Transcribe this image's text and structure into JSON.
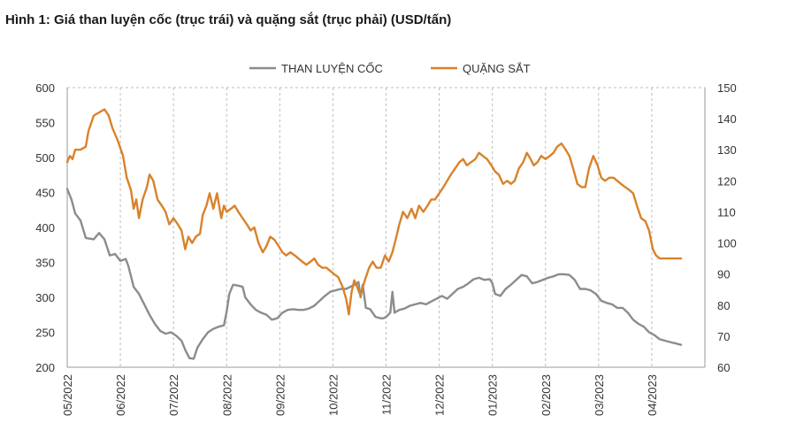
{
  "page": {
    "title": "Hình 1: Giá than luyện cốc (trục trái) và quặng sắt (trục phải) (USD/tấn)"
  },
  "colors": {
    "coal": "#8c8c8c",
    "ore": "#d9822b",
    "grid": "#bdbdbd",
    "axis": "#999999"
  },
  "chart_data": {
    "type": "line",
    "title": "Hình 1: Giá than luyện cốc (trục trái) và quặng sắt (trục phải) (USD/tấn)",
    "legend_position": "top-center",
    "grid": "vertical-dashed",
    "x_ticks": [
      "05/2022",
      "06/2022",
      "07/2022",
      "08/2022",
      "09/2022",
      "10/2022",
      "11/2022",
      "12/2022",
      "01/2023",
      "02/2023",
      "03/2023",
      "04/2023"
    ],
    "y_left": {
      "min": 200,
      "max": 600,
      "ticks": [
        200,
        250,
        300,
        350,
        400,
        450,
        500,
        550,
        600
      ]
    },
    "y_right": {
      "min": 60,
      "max": 150,
      "ticks": [
        60,
        70,
        80,
        90,
        100,
        110,
        120,
        130,
        140,
        150
      ]
    },
    "series": [
      {
        "name": "THAN LUYỆN CỐC",
        "axis": "left",
        "points": [
          [
            0,
            455
          ],
          [
            0.08,
            440
          ],
          [
            0.15,
            420
          ],
          [
            0.25,
            410
          ],
          [
            0.35,
            385
          ],
          [
            0.5,
            383
          ],
          [
            0.6,
            392
          ],
          [
            0.7,
            383
          ],
          [
            0.8,
            360
          ],
          [
            0.9,
            362
          ],
          [
            1.0,
            352
          ],
          [
            1.1,
            355
          ],
          [
            1.15,
            345
          ],
          [
            1.25,
            315
          ],
          [
            1.35,
            305
          ],
          [
            1.45,
            290
          ],
          [
            1.55,
            275
          ],
          [
            1.65,
            262
          ],
          [
            1.75,
            252
          ],
          [
            1.85,
            248
          ],
          [
            1.95,
            250
          ],
          [
            2.05,
            245
          ],
          [
            2.15,
            238
          ],
          [
            2.22,
            225
          ],
          [
            2.3,
            213
          ],
          [
            2.38,
            212
          ],
          [
            2.45,
            228
          ],
          [
            2.55,
            240
          ],
          [
            2.65,
            250
          ],
          [
            2.75,
            255
          ],
          [
            2.85,
            258
          ],
          [
            2.95,
            260
          ],
          [
            3.0,
            280
          ],
          [
            3.05,
            305
          ],
          [
            3.12,
            318
          ],
          [
            3.2,
            317
          ],
          [
            3.3,
            315
          ],
          [
            3.35,
            300
          ],
          [
            3.45,
            290
          ],
          [
            3.55,
            282
          ],
          [
            3.65,
            278
          ],
          [
            3.75,
            275
          ],
          [
            3.85,
            268
          ],
          [
            3.95,
            270
          ],
          [
            4.05,
            278
          ],
          [
            4.15,
            282
          ],
          [
            4.25,
            283
          ],
          [
            4.35,
            282
          ],
          [
            4.45,
            282
          ],
          [
            4.55,
            284
          ],
          [
            4.65,
            288
          ],
          [
            4.75,
            295
          ],
          [
            4.85,
            302
          ],
          [
            4.95,
            308
          ],
          [
            5.05,
            310
          ],
          [
            5.15,
            312
          ],
          [
            5.25,
            312
          ],
          [
            5.35,
            316
          ],
          [
            5.42,
            318
          ],
          [
            5.48,
            322
          ],
          [
            5.52,
            300
          ],
          [
            5.56,
            318
          ],
          [
            5.62,
            285
          ],
          [
            5.7,
            283
          ],
          [
            5.8,
            272
          ],
          [
            5.9,
            270
          ],
          [
            5.95,
            270
          ],
          [
            6.0,
            272
          ],
          [
            6.08,
            278
          ],
          [
            6.12,
            308
          ],
          [
            6.16,
            278
          ],
          [
            6.25,
            282
          ],
          [
            6.35,
            284
          ],
          [
            6.45,
            288
          ],
          [
            6.55,
            290
          ],
          [
            6.65,
            292
          ],
          [
            6.75,
            290
          ],
          [
            6.85,
            294
          ],
          [
            6.95,
            298
          ],
          [
            7.05,
            302
          ],
          [
            7.15,
            298
          ],
          [
            7.25,
            305
          ],
          [
            7.35,
            312
          ],
          [
            7.45,
            315
          ],
          [
            7.55,
            320
          ],
          [
            7.65,
            326
          ],
          [
            7.75,
            328
          ],
          [
            7.85,
            325
          ],
          [
            7.95,
            326
          ],
          [
            8.0,
            320
          ],
          [
            8.05,
            305
          ],
          [
            8.15,
            302
          ],
          [
            8.25,
            312
          ],
          [
            8.35,
            318
          ],
          [
            8.45,
            325
          ],
          [
            8.55,
            332
          ],
          [
            8.65,
            330
          ],
          [
            8.75,
            320
          ],
          [
            8.85,
            322
          ],
          [
            8.95,
            325
          ],
          [
            9.05,
            328
          ],
          [
            9.15,
            330
          ],
          [
            9.25,
            333
          ],
          [
            9.35,
            333
          ],
          [
            9.45,
            332
          ],
          [
            9.55,
            325
          ],
          [
            9.65,
            312
          ],
          [
            9.75,
            312
          ],
          [
            9.85,
            310
          ],
          [
            9.95,
            305
          ],
          [
            10.05,
            295
          ],
          [
            10.15,
            292
          ],
          [
            10.25,
            290
          ],
          [
            10.35,
            285
          ],
          [
            10.45,
            285
          ],
          [
            10.55,
            278
          ],
          [
            10.65,
            268
          ],
          [
            10.75,
            262
          ],
          [
            10.85,
            258
          ],
          [
            10.95,
            250
          ],
          [
            11.05,
            246
          ],
          [
            11.15,
            240
          ],
          [
            11.25,
            238
          ],
          [
            11.35,
            236
          ],
          [
            11.45,
            234
          ],
          [
            11.55,
            232
          ]
        ]
      },
      {
        "name": "QUẶNG SẮT",
        "axis": "right",
        "points": [
          [
            0,
            126
          ],
          [
            0.05,
            128
          ],
          [
            0.1,
            127
          ],
          [
            0.15,
            130
          ],
          [
            0.25,
            130
          ],
          [
            0.35,
            131
          ],
          [
            0.4,
            136
          ],
          [
            0.5,
            141
          ],
          [
            0.6,
            142
          ],
          [
            0.7,
            143
          ],
          [
            0.78,
            141
          ],
          [
            0.85,
            137
          ],
          [
            0.95,
            133
          ],
          [
            1.05,
            128
          ],
          [
            1.12,
            121
          ],
          [
            1.2,
            117
          ],
          [
            1.25,
            111
          ],
          [
            1.3,
            114
          ],
          [
            1.35,
            108
          ],
          [
            1.42,
            114
          ],
          [
            1.5,
            118
          ],
          [
            1.55,
            122
          ],
          [
            1.62,
            120
          ],
          [
            1.7,
            114
          ],
          [
            1.78,
            112
          ],
          [
            1.85,
            110
          ],
          [
            1.92,
            106
          ],
          [
            2.0,
            108
          ],
          [
            2.08,
            106
          ],
          [
            2.15,
            104
          ],
          [
            2.22,
            98
          ],
          [
            2.28,
            102
          ],
          [
            2.35,
            100
          ],
          [
            2.42,
            102
          ],
          [
            2.5,
            103
          ],
          [
            2.55,
            109
          ],
          [
            2.62,
            112
          ],
          [
            2.68,
            116
          ],
          [
            2.75,
            111
          ],
          [
            2.82,
            116
          ],
          [
            2.9,
            108
          ],
          [
            2.95,
            112
          ],
          [
            3.0,
            110
          ],
          [
            3.08,
            111
          ],
          [
            3.15,
            112
          ],
          [
            3.22,
            110
          ],
          [
            3.3,
            108
          ],
          [
            3.38,
            106
          ],
          [
            3.45,
            104
          ],
          [
            3.52,
            105
          ],
          [
            3.6,
            100
          ],
          [
            3.68,
            97
          ],
          [
            3.75,
            99
          ],
          [
            3.82,
            102
          ],
          [
            3.9,
            101
          ],
          [
            3.98,
            99
          ],
          [
            4.05,
            97
          ],
          [
            4.12,
            96
          ],
          [
            4.2,
            97
          ],
          [
            4.28,
            96
          ],
          [
            4.35,
            95
          ],
          [
            4.42,
            94
          ],
          [
            4.5,
            93
          ],
          [
            4.58,
            94
          ],
          [
            4.65,
            95
          ],
          [
            4.72,
            93
          ],
          [
            4.8,
            92
          ],
          [
            4.88,
            92
          ],
          [
            4.95,
            91
          ],
          [
            5.02,
            90
          ],
          [
            5.1,
            89
          ],
          [
            5.18,
            86
          ],
          [
            5.25,
            82
          ],
          [
            5.3,
            77
          ],
          [
            5.35,
            84
          ],
          [
            5.4,
            88
          ],
          [
            5.45,
            86
          ],
          [
            5.52,
            83
          ],
          [
            5.6,
            88
          ],
          [
            5.68,
            92
          ],
          [
            5.75,
            94
          ],
          [
            5.82,
            92
          ],
          [
            5.9,
            92
          ],
          [
            5.98,
            96
          ],
          [
            6.05,
            94
          ],
          [
            6.12,
            97
          ],
          [
            6.18,
            101
          ],
          [
            6.25,
            106
          ],
          [
            6.32,
            110
          ],
          [
            6.4,
            108
          ],
          [
            6.48,
            111
          ],
          [
            6.55,
            108
          ],
          [
            6.62,
            112
          ],
          [
            6.7,
            110
          ],
          [
            6.78,
            112
          ],
          [
            6.85,
            114
          ],
          [
            6.92,
            114
          ],
          [
            7.0,
            116
          ],
          [
            7.08,
            118
          ],
          [
            7.15,
            120
          ],
          [
            7.22,
            122
          ],
          [
            7.3,
            124
          ],
          [
            7.38,
            126
          ],
          [
            7.45,
            127
          ],
          [
            7.52,
            125
          ],
          [
            7.6,
            126
          ],
          [
            7.68,
            127
          ],
          [
            7.75,
            129
          ],
          [
            7.82,
            128
          ],
          [
            7.9,
            127
          ],
          [
            7.98,
            125
          ],
          [
            8.05,
            123
          ],
          [
            8.12,
            122
          ],
          [
            8.2,
            119
          ],
          [
            8.28,
            120
          ],
          [
            8.35,
            119
          ],
          [
            8.42,
            120
          ],
          [
            8.5,
            124
          ],
          [
            8.58,
            126
          ],
          [
            8.65,
            129
          ],
          [
            8.72,
            127
          ],
          [
            8.78,
            125
          ],
          [
            8.85,
            126
          ],
          [
            8.92,
            128
          ],
          [
            9.0,
            127
          ],
          [
            9.08,
            128
          ],
          [
            9.15,
            129
          ],
          [
            9.22,
            131
          ],
          [
            9.3,
            132
          ],
          [
            9.38,
            130
          ],
          [
            9.45,
            128
          ],
          [
            9.52,
            124
          ],
          [
            9.6,
            119
          ],
          [
            9.68,
            118
          ],
          [
            9.75,
            118
          ],
          [
            9.82,
            124
          ],
          [
            9.9,
            128
          ],
          [
            9.98,
            125
          ],
          [
            10.05,
            121
          ],
          [
            10.12,
            120
          ],
          [
            10.2,
            121
          ],
          [
            10.28,
            121
          ],
          [
            10.35,
            120
          ],
          [
            10.42,
            119
          ],
          [
            10.5,
            118
          ],
          [
            10.58,
            117
          ],
          [
            10.65,
            116
          ],
          [
            10.72,
            112
          ],
          [
            10.8,
            108
          ],
          [
            10.88,
            107
          ],
          [
            10.95,
            104
          ],
          [
            11.02,
            98
          ],
          [
            11.08,
            96
          ],
          [
            11.15,
            95
          ],
          [
            11.3,
            95
          ],
          [
            11.55,
            95
          ]
        ]
      }
    ]
  }
}
